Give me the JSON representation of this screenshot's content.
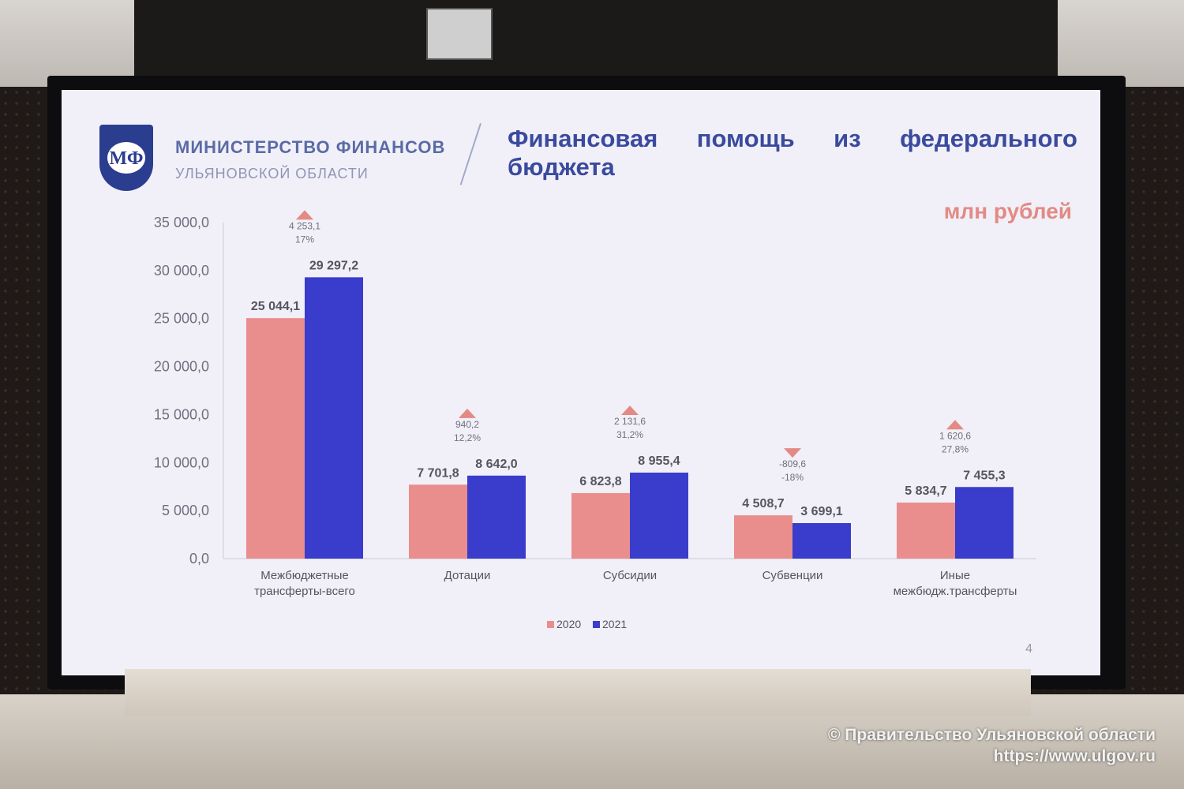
{
  "ministry": {
    "name": "МИНИСТЕРСТВО ФИНАНСОВ",
    "region": "УЛЬЯНОВСКОЙ ОБЛАСТИ"
  },
  "slide": {
    "title": "Финансовая помощь из федерального бюджета",
    "units": "млн рублей",
    "page_number": "4"
  },
  "watermark": {
    "line1": "© Правительство Ульяновской области",
    "line2": "https://www.ulgov.ru"
  },
  "colors": {
    "series_2020": "#ea8d8d",
    "series_2021": "#3a3ccb",
    "title": "#3a4a9e",
    "units": "#e38a85",
    "triangle": "#e38a85"
  },
  "chart_data": {
    "type": "bar",
    "categories": [
      [
        "Межбюджетные",
        "трансферты-всего"
      ],
      [
        "Дотации"
      ],
      [
        "Субсидии"
      ],
      [
        "Субвенции"
      ],
      [
        "Иные",
        "межбюдж.трансферты"
      ]
    ],
    "series": [
      {
        "name": "2020",
        "values": [
          25044.1,
          7701.8,
          6823.8,
          4508.7,
          5834.7
        ],
        "labels": [
          "25 044,1",
          "7 701,8",
          "6 823,8",
          "4 508,7",
          "5 834,7"
        ]
      },
      {
        "name": "2021",
        "values": [
          29297.2,
          8642.0,
          8955.4,
          3699.1,
          7455.3
        ],
        "labels": [
          "29 297,2",
          "8 642,0",
          "8 955,4",
          "3 699,1",
          "7 455,3"
        ]
      }
    ],
    "changes": [
      {
        "direction": "up",
        "abs": "4 253,1",
        "pct": "17%"
      },
      {
        "direction": "up",
        "abs": "940,2",
        "pct": "12,2%"
      },
      {
        "direction": "up",
        "abs": "2 131,6",
        "pct": "31,2%"
      },
      {
        "direction": "down",
        "abs": "-809,6",
        "pct": "-18%"
      },
      {
        "direction": "up",
        "abs": "1 620,6",
        "pct": "27,8%"
      }
    ],
    "ylim": [
      0,
      35000
    ],
    "y_ticks": [
      "0,0",
      "5 000,0",
      "10 000,0",
      "15 000,0",
      "20 000,0",
      "25 000,0",
      "30 000,0",
      "35 000,0"
    ],
    "legend": [
      "2020",
      "2021"
    ],
    "legend_position": "bottom",
    "grid": false
  }
}
